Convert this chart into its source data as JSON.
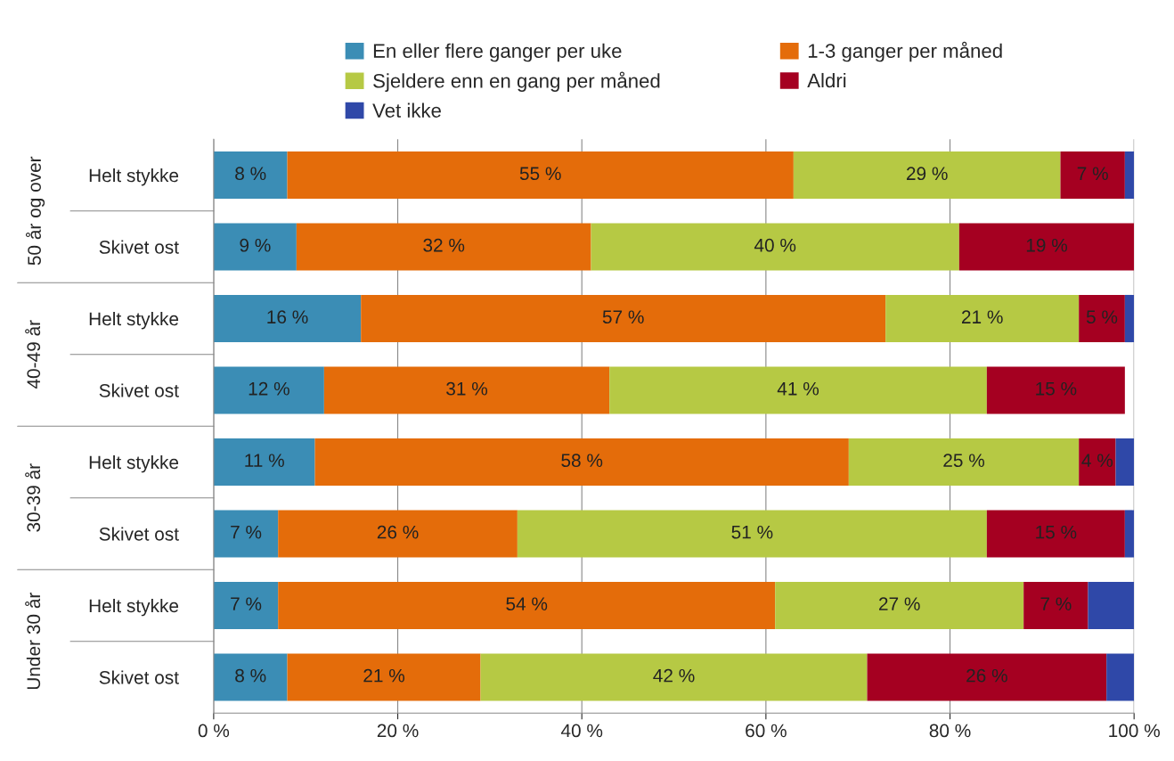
{
  "chart_data": {
    "type": "bar",
    "orientation": "horizontal",
    "stacked": true,
    "categories": [
      "Helt stykke",
      "Skivet ost",
      "Helt stykke",
      "Skivet ost",
      "Helt stykke",
      "Skivet ost",
      "Helt stykke",
      "Skivet ost"
    ],
    "annotations": [
      "50 år og over",
      "40-49 år",
      "30-39 år",
      "Under 30 år"
    ],
    "series": [
      {
        "name": "En eller flere ganger per uke",
        "color": "#3b8db5",
        "values": [
          8,
          9,
          16,
          12,
          11,
          7,
          7,
          8
        ],
        "value_labels": [
          "8 %",
          "9 %",
          "16 %",
          "12 %",
          "11 %",
          "7 %",
          "7 %",
          "8 %"
        ]
      },
      {
        "name": "1-3 ganger per måned",
        "color": "#e46c0a",
        "values": [
          55,
          32,
          57,
          31,
          58,
          26,
          54,
          21
        ],
        "value_labels": [
          "55 %",
          "32 %",
          "57 %",
          "31 %",
          "58 %",
          "26 %",
          "54 %",
          "21 %"
        ]
      },
      {
        "name": "Sjeldere enn en gang per måned",
        "color": "#b6c944",
        "values": [
          29,
          40,
          21,
          41,
          25,
          51,
          27,
          42
        ],
        "value_labels": [
          "29 %",
          "40 %",
          "21 %",
          "41 %",
          "25 %",
          "51 %",
          "27 %",
          "42 %"
        ]
      },
      {
        "name": "Aldri",
        "color": "#a50021",
        "values": [
          7,
          19,
          5,
          15,
          4,
          15,
          7,
          26
        ],
        "value_labels": [
          "7 %",
          "19 %",
          "5 %",
          "15 %",
          "4 %",
          "15 %",
          "7 %",
          "26 %"
        ]
      },
      {
        "name": "Vet ikke",
        "color": "#2f48a8",
        "values": [
          1,
          null,
          1,
          null,
          2,
          1,
          5,
          3
        ]
      }
    ],
    "xlim": [
      0,
      100
    ],
    "xticks": [
      {
        "value": 0,
        "label": "0 %"
      },
      {
        "value": 20,
        "label": "20 %"
      },
      {
        "value": 40,
        "label": "40 %"
      },
      {
        "value": 60,
        "label": "60 %"
      },
      {
        "value": 80,
        "label": "80 %"
      },
      {
        "value": 100,
        "label": "100 %"
      }
    ],
    "grid": "x",
    "legend": "top"
  }
}
